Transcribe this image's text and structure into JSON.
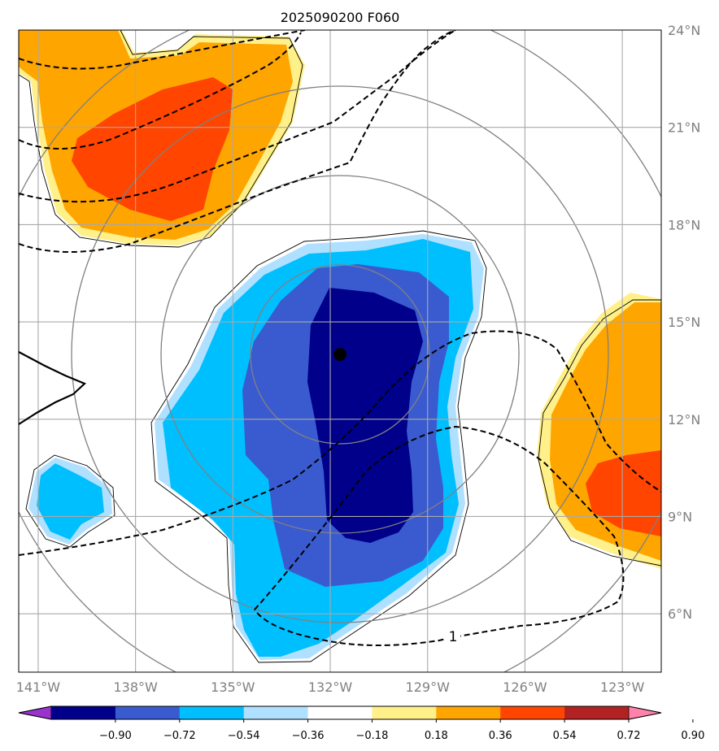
{
  "title": "2025090200 F060",
  "center_marker": {
    "lon": -131.7,
    "lat": 14.0,
    "color": "#000000"
  },
  "axes": {
    "lon_range": [
      -141.6,
      -121.8
    ],
    "lat_range": [
      4.2,
      24.0
    ],
    "lon_ticks": [
      {
        "value": -141,
        "label": "141°W"
      },
      {
        "value": -138,
        "label": "138°W"
      },
      {
        "value": -135,
        "label": "135°W"
      },
      {
        "value": -132,
        "label": "132°W"
      },
      {
        "value": -129,
        "label": "129°W"
      },
      {
        "value": -126,
        "label": "126°W"
      },
      {
        "value": -123,
        "label": "123°W"
      }
    ],
    "lat_ticks": [
      {
        "value": 6,
        "label": "6°N"
      },
      {
        "value": 9,
        "label": "9°N"
      },
      {
        "value": 12,
        "label": "12°N"
      },
      {
        "value": 15,
        "label": "15°N"
      },
      {
        "value": 18,
        "label": "18°N"
      },
      {
        "value": 21,
        "label": "21°N"
      },
      {
        "value": 24,
        "label": "24°N"
      }
    ],
    "grid": true,
    "label_color": "#808080"
  },
  "range_rings": {
    "count": 4,
    "color": "#808080"
  },
  "contour_label": "1",
  "colorbar": {
    "colors": [
      "#9a32cd",
      "#00008b",
      "#3a5bcf",
      "#00bfff",
      "#b0e0ff",
      "#ffffff",
      "#fff08a",
      "#ffa500",
      "#ff4500",
      "#b22222",
      "#ff82ab"
    ],
    "labels": [
      "−0.90",
      "−0.72",
      "−0.54",
      "−0.36",
      "−0.18",
      "0.18",
      "0.36",
      "0.54",
      "0.72",
      "0.90"
    ]
  },
  "fill_colors": {
    "neg_light": "#b0e0ff",
    "neg_1": "#00bfff",
    "neg_2": "#3a5bcf",
    "neg_3": "#00008b",
    "pos_light": "#fff08a",
    "pos_1": "#ffa500",
    "pos_2": "#ff4500"
  }
}
